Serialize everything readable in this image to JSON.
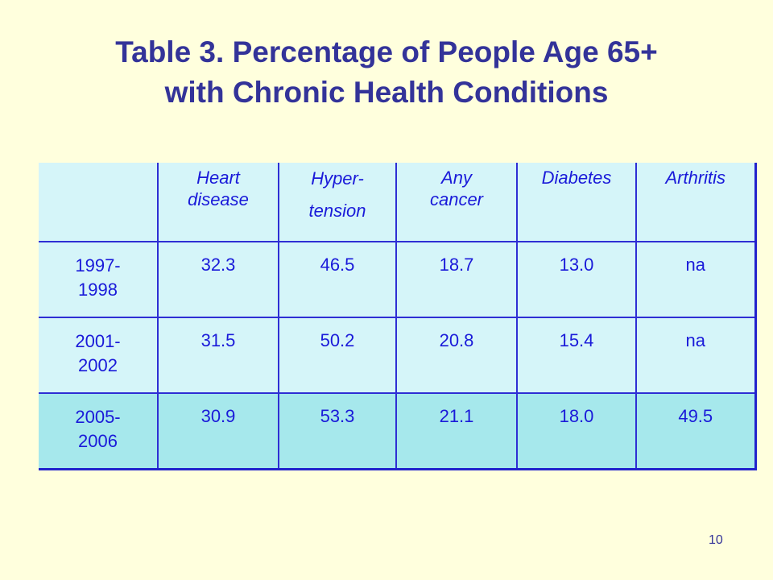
{
  "title": {
    "line1": "Table 3.  Percentage of People Age 65+",
    "line2": "with Chronic Health Conditions"
  },
  "table": {
    "headers": [
      {
        "line1": "",
        "line2": ""
      },
      {
        "line1": "Heart",
        "line2": "disease"
      },
      {
        "line1": "Hyper-",
        "line2": "tension"
      },
      {
        "line1": "Any",
        "line2": "cancer"
      },
      {
        "line1": "Diabetes",
        "line2": ""
      },
      {
        "line1": "Arthritis",
        "line2": ""
      }
    ],
    "rows": [
      {
        "year_line1": "1997-",
        "year_line2": "1998",
        "values": [
          "32.3",
          "46.5",
          "18.7",
          "13.0",
          "na"
        ]
      },
      {
        "year_line1": "2001-",
        "year_line2": "2002",
        "values": [
          "31.5",
          "50.2",
          "20.8",
          "15.4",
          "na"
        ]
      },
      {
        "year_line1": "2005-",
        "year_line2": "2006",
        "values": [
          "30.9",
          "53.3",
          "21.1",
          "18.0",
          "49.5"
        ]
      }
    ]
  },
  "page_number": "10",
  "colors": {
    "background": "#FFFFDD",
    "title": "#333399",
    "table_text": "#1a1ad9",
    "cell_fill": "#D5F5F9",
    "highlight_fill": "#A6E8EC",
    "border": "#2e2ed4"
  }
}
